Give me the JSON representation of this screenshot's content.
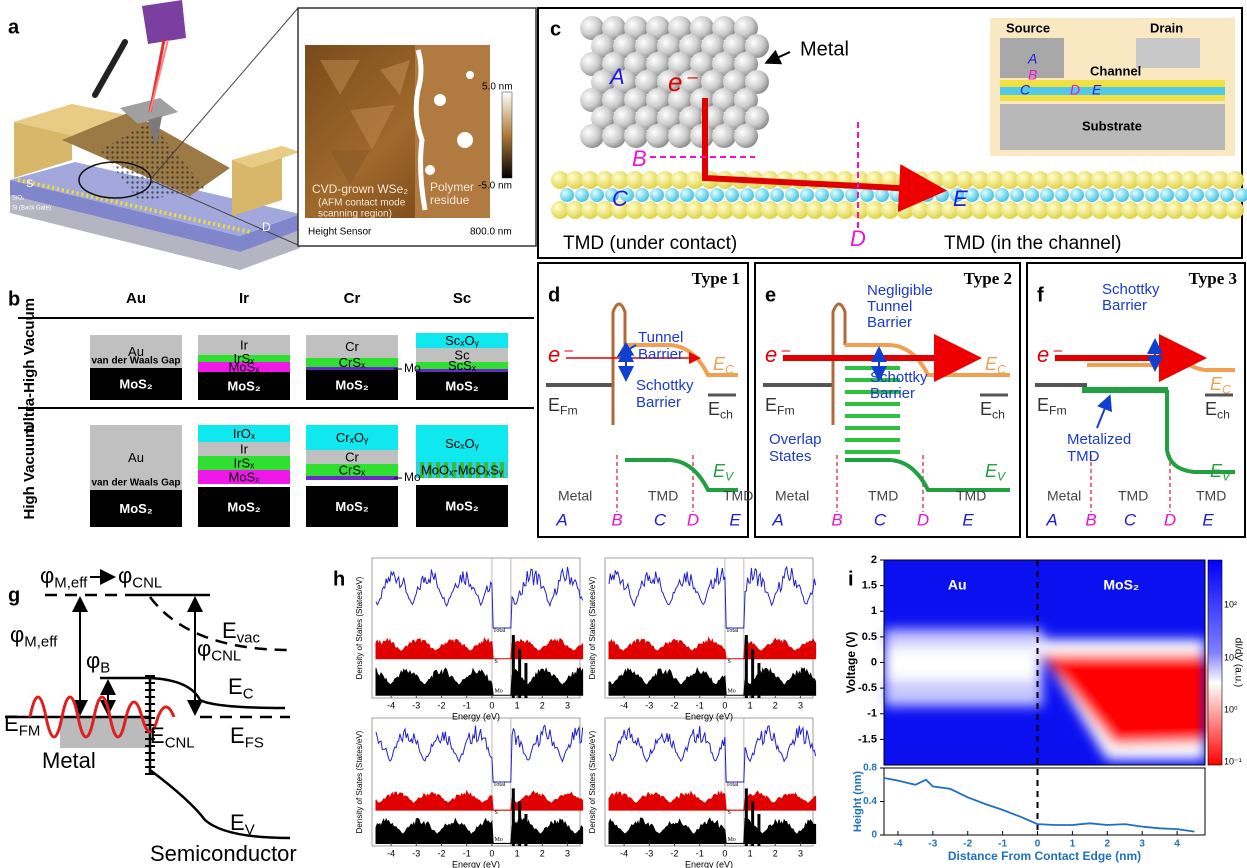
{
  "panel_letters": [
    "a",
    "b",
    "c",
    "d",
    "e",
    "f",
    "g",
    "h",
    "i"
  ],
  "a": {
    "source": "S",
    "drain": "D",
    "oxide": "SiO₂",
    "gate": "Si (Back Gate)",
    "caption": "CVD-grown WSe₂",
    "caption_note": [
      "(AFM contact mode",
      "scanning region)"
    ],
    "residue": [
      "Polymer",
      "residue"
    ],
    "sensor": "Height Sensor",
    "scale": "800.0 nm",
    "colorbar_max": "5.0 nm",
    "colorbar_min": "-5.0 nm"
  },
  "b": {
    "metals": [
      "Au",
      "Ir",
      "Cr",
      "Sc"
    ],
    "conditions": [
      "Ultra-High Vacuum",
      "High Vacuum"
    ],
    "vdw_gap": "van der Waals Gap",
    "interlayer": "Mo",
    "uhv": [
      [
        "Au",
        "MoS₂"
      ],
      [
        "Ir",
        "IrSₓ",
        "MoSₓ",
        "MoS₂"
      ],
      [
        "Cr",
        "CrSₓ",
        "MoS₂"
      ],
      [
        "ScₓOᵧ",
        "Sc",
        "ScSₓ",
        "MoS₂"
      ]
    ],
    "hv": [
      [
        "Au",
        "MoS₂"
      ],
      [
        "IrOₓ",
        "Ir",
        "IrSₓ",
        "MoSₓ",
        "MoS₂"
      ],
      [
        "CrₓOᵧ",
        "Cr",
        "CrSₓ",
        "MoS₂"
      ],
      [
        "ScₓOᵧ",
        "MoOₓ-MoOₓSᵧ",
        "MoS₂"
      ]
    ]
  },
  "c": {
    "metal": "Metal",
    "A": "A",
    "B": "B",
    "C": "C",
    "D": "D",
    "E": "E",
    "electron": "e⁻",
    "under_contact": "TMD (under contact)",
    "in_channel": "TMD (in the channel)",
    "inset": {
      "source": "Source",
      "drain": "Drain",
      "channel": "Channel",
      "substrate": "Substrate",
      "A": "A",
      "B": "B",
      "C": "C",
      "D": "D",
      "E": "E"
    }
  },
  "band_common": {
    "electron": "e⁻",
    "e_fm": {
      "main": "E",
      "sub": "Fm"
    },
    "e_c": {
      "main": "E",
      "sub": "C"
    },
    "e_ch": {
      "main": "E",
      "sub": "ch"
    },
    "e_v": {
      "main": "E",
      "sub": "V"
    },
    "regions": [
      "Metal",
      "TMD",
      "TMD"
    ],
    "points": [
      "A",
      "B",
      "C",
      "D",
      "E"
    ]
  },
  "band_diagrams": [
    {
      "title": "Type 1",
      "annotations": [
        [
          "Tunnel",
          "Barrier"
        ],
        [
          "Schottky",
          "Barrier"
        ]
      ]
    },
    {
      "title": "Type 2",
      "annotations": [
        [
          "Negligible",
          "Tunnel",
          "Barrier"
        ],
        [
          "Schottky",
          "Barrier"
        ],
        [
          "Overlap",
          "States"
        ]
      ]
    },
    {
      "title": "Type 3",
      "annotations": [
        [
          "Schottky",
          "Barrier"
        ],
        [
          "Metalized",
          "TMD"
        ]
      ]
    }
  ],
  "g": {
    "phi_m_eff_top": {
      "main": "φ",
      "sub": "M,eff"
    },
    "phi_cnl_top": {
      "main": "φ",
      "sub": "CNL"
    },
    "phi_m_eff": {
      "main": "φ",
      "sub": "M,eff"
    },
    "phi_b": {
      "main": "φ",
      "sub": "B"
    },
    "phi_cnl": {
      "main": "φ",
      "sub": "CNL"
    },
    "e_vac": {
      "main": "E",
      "sub": "vac"
    },
    "e_c": {
      "main": "E",
      "sub": "C"
    },
    "e_fm": {
      "main": "E",
      "sub": "FM"
    },
    "e_cnl": {
      "main": "E",
      "sub": "CNL"
    },
    "e_fs": {
      "main": "E",
      "sub": "FS"
    },
    "e_v": {
      "main": "E",
      "sub": "V"
    },
    "metal": "Metal",
    "semiconductor": "Semiconductor"
  },
  "h": {
    "ylabel": "Density of States (States/eV)",
    "xlabel": "Energy (eV)",
    "xticks": [
      -4,
      -3,
      -2,
      -1,
      0,
      1,
      2,
      3
    ],
    "legend": [
      "Total",
      "S",
      "Mo"
    ]
  },
  "i": {
    "ylabel": "Voltage (V)",
    "yticks": [
      2,
      1.5,
      1,
      0.5,
      0,
      -0.5,
      -1,
      -1.5
    ],
    "ylim": [
      2,
      -2
    ],
    "regions": [
      "Au",
      "MoS₂"
    ],
    "colorbar_ticks": [
      "10²",
      "10¹",
      "10⁰",
      "10⁻¹"
    ],
    "colorbar_label": "dI/dV (a.u.)",
    "height_label": "Height (nm)",
    "height_yticks": [
      0.8,
      0.4,
      0
    ],
    "height_ylim": [
      0.8,
      0
    ],
    "xticks": [
      -4,
      -3,
      -2,
      -1,
      0,
      1,
      2,
      3,
      4
    ],
    "xlim": [
      -4.4,
      4.8
    ],
    "xlabel": "Distance From Contact Edge (nm)",
    "height_profile": {
      "x": [
        -4.4,
        -4,
        -3.5,
        -3.2,
        -3,
        -2.5,
        -2,
        -1.5,
        -1,
        -0.5,
        0,
        0.5,
        1,
        1.5,
        2,
        2.5,
        3,
        3.5,
        4,
        4.5
      ],
      "y": [
        0.68,
        0.65,
        0.6,
        0.66,
        0.58,
        0.55,
        0.45,
        0.37,
        0.3,
        0.22,
        0.13,
        0.12,
        0.12,
        0.14,
        0.12,
        0.13,
        0.1,
        0.08,
        0.07,
        0.04
      ]
    }
  }
}
